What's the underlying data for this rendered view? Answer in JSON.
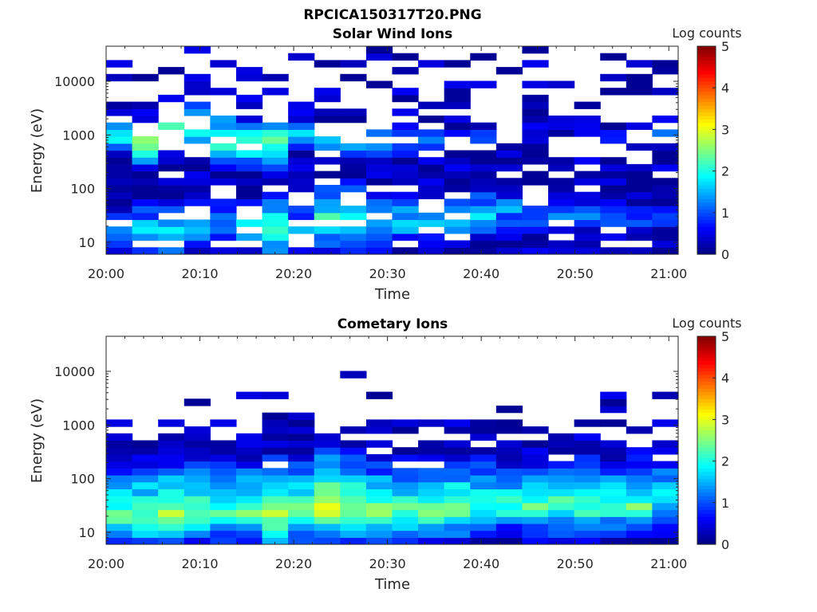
{
  "figure_title": "RPCICA150317T20.PNG",
  "chart_data": [
    {
      "type": "heatmap",
      "title": "Solar Wind Ions",
      "xlabel": "Time",
      "ylabel": "Energy (eV)",
      "x_ticks": [
        "20:00",
        "20:10",
        "20:20",
        "20:30",
        "20:40",
        "20:50",
        "21:00"
      ],
      "x_range": [
        "20:00",
        "21:01"
      ],
      "y_scale": "log",
      "y_range": [
        6,
        45000
      ],
      "y_ticks": [
        "10",
        "100",
        "1000",
        "10000"
      ],
      "colorbar": {
        "label": "Log counts",
        "range": [
          0,
          5
        ],
        "ticks": [
          "0",
          "1",
          "2",
          "3",
          "4",
          "5"
        ],
        "colormap": "jet"
      },
      "profile": [
        {
          "time": "20:00",
          "peak_energy_eV": 12,
          "peak_log_counts": 1.2,
          "extra_energy_eV": 1500,
          "extra_log_counts": 1.2
        },
        {
          "time": "20:02",
          "peak_energy_eV": 15,
          "peak_log_counts": 1.6,
          "extra_energy_eV": 700,
          "extra_log_counts": 2.3
        },
        {
          "time": "20:05",
          "peak_energy_eV": 15,
          "peak_log_counts": 1.9,
          "extra_energy_eV": 700,
          "extra_log_counts": 2.7
        },
        {
          "time": "20:08",
          "peak_energy_eV": 15,
          "peak_log_counts": 1.8,
          "extra_energy_eV": 1500,
          "extra_log_counts": 2.2
        },
        {
          "time": "20:11",
          "peak_energy_eV": 20,
          "peak_log_counts": 1.4,
          "extra_energy_eV": 1500,
          "extra_log_counts": 2.2
        },
        {
          "time": "20:13",
          "peak_energy_eV": 20,
          "peak_log_counts": 1.5,
          "extra_energy_eV": 700,
          "extra_log_counts": 2.6
        },
        {
          "time": "20:16",
          "peak_energy_eV": 20,
          "peak_log_counts": 1.7,
          "extra_energy_eV": 700,
          "extra_log_counts": 2.4
        },
        {
          "time": "20:19",
          "peak_energy_eV": 20,
          "peak_log_counts": 2.3,
          "extra_energy_eV": 800,
          "extra_log_counts": 2.7
        },
        {
          "time": "20:21",
          "peak_energy_eV": 20,
          "peak_log_counts": 1.4,
          "extra_energy_eV": 1000,
          "extra_log_counts": 1.5
        },
        {
          "time": "20:24",
          "peak_energy_eV": 30,
          "peak_log_counts": 2.2,
          "extra_energy_eV": 800,
          "extra_log_counts": 1.6
        },
        {
          "time": "20:27",
          "peak_energy_eV": 30,
          "peak_log_counts": 2.0,
          "extra_energy_eV": 800,
          "extra_log_counts": 2.0
        },
        {
          "time": "20:30",
          "peak_energy_eV": 25,
          "peak_log_counts": 1.8,
          "extra_energy_eV": 700,
          "extra_log_counts": 1.6
        },
        {
          "time": "20:33",
          "peak_energy_eV": 25,
          "peak_log_counts": 1.6,
          "extra_energy_eV": 800,
          "extra_log_counts": 1.6
        },
        {
          "time": "20:36",
          "peak_energy_eV": 30,
          "peak_log_counts": 1.7,
          "extra_energy_eV": 800,
          "extra_log_counts": 1.4
        },
        {
          "time": "20:39",
          "peak_energy_eV": 30,
          "peak_log_counts": 1.7,
          "extra_energy_eV": 800,
          "extra_log_counts": 1.2
        },
        {
          "time": "20:42",
          "peak_energy_eV": 40,
          "peak_log_counts": 1.5,
          "extra_energy_eV": 900,
          "extra_log_counts": 1.0
        },
        {
          "time": "20:45",
          "peak_energy_eV": 40,
          "peak_log_counts": 1.2,
          "extra_energy_eV": 900,
          "extra_log_counts": 0.9
        },
        {
          "time": "20:48",
          "peak_energy_eV": 30,
          "peak_log_counts": 1.3,
          "extra_energy_eV": 900,
          "extra_log_counts": 0.8
        },
        {
          "time": "20:51",
          "peak_energy_eV": 30,
          "peak_log_counts": 1.1,
          "extra_energy_eV": 900,
          "extra_log_counts": 0.8
        },
        {
          "time": "20:54",
          "peak_energy_eV": 30,
          "peak_log_counts": 1.1,
          "extra_energy_eV": 1000,
          "extra_log_counts": 0.8
        },
        {
          "time": "20:57",
          "peak_energy_eV": 25,
          "peak_log_counts": 1.1,
          "extra_energy_eV": 1000,
          "extra_log_counts": 0.8
        },
        {
          "time": "21:00",
          "peak_energy_eV": 30,
          "peak_log_counts": 1.0,
          "extra_energy_eV": 1300,
          "extra_log_counts": 1.7
        }
      ]
    },
    {
      "type": "heatmap",
      "title": "Cometary Ions",
      "xlabel": "Time",
      "ylabel": "Energy (eV)",
      "x_ticks": [
        "20:00",
        "20:10",
        "20:20",
        "20:30",
        "20:40",
        "20:50",
        "21:00"
      ],
      "x_range": [
        "20:00",
        "21:01"
      ],
      "y_scale": "log",
      "y_range": [
        6,
        45000
      ],
      "y_ticks": [
        "10",
        "100",
        "1000",
        "10000"
      ],
      "colorbar": {
        "label": "Log counts",
        "range": [
          0,
          5
        ],
        "ticks": [
          "0",
          "1",
          "2",
          "3",
          "4",
          "5"
        ],
        "colormap": "jet"
      },
      "profile": [
        {
          "time": "20:00",
          "peak_energy_eV": 25,
          "peak_log_counts": 2.2
        },
        {
          "time": "20:02",
          "peak_energy_eV": 20,
          "peak_log_counts": 2.4
        },
        {
          "time": "20:05",
          "peak_energy_eV": 20,
          "peak_log_counts": 2.6
        },
        {
          "time": "20:08",
          "peak_energy_eV": 25,
          "peak_log_counts": 2.6
        },
        {
          "time": "20:11",
          "peak_energy_eV": 25,
          "peak_log_counts": 2.3
        },
        {
          "time": "20:13",
          "peak_energy_eV": 25,
          "peak_log_counts": 2.4
        },
        {
          "time": "20:16",
          "peak_energy_eV": 25,
          "peak_log_counts": 2.4
        },
        {
          "time": "20:19",
          "peak_energy_eV": 20,
          "peak_log_counts": 2.9
        },
        {
          "time": "20:21",
          "peak_energy_eV": 25,
          "peak_log_counts": 2.5
        },
        {
          "time": "20:24",
          "peak_energy_eV": 30,
          "peak_log_counts": 3.0
        },
        {
          "time": "20:27",
          "peak_energy_eV": 25,
          "peak_log_counts": 2.6
        },
        {
          "time": "20:30",
          "peak_energy_eV": 25,
          "peak_log_counts": 2.4
        },
        {
          "time": "20:33",
          "peak_energy_eV": 25,
          "peak_log_counts": 2.4
        },
        {
          "time": "20:36",
          "peak_energy_eV": 25,
          "peak_log_counts": 2.6
        },
        {
          "time": "20:39",
          "peak_energy_eV": 30,
          "peak_log_counts": 2.3
        },
        {
          "time": "20:42",
          "peak_energy_eV": 30,
          "peak_log_counts": 2.1
        },
        {
          "time": "20:45",
          "peak_energy_eV": 30,
          "peak_log_counts": 2.2
        },
        {
          "time": "20:48",
          "peak_energy_eV": 30,
          "peak_log_counts": 2.3
        },
        {
          "time": "20:51",
          "peak_energy_eV": 30,
          "peak_log_counts": 2.3
        },
        {
          "time": "20:54",
          "peak_energy_eV": 30,
          "peak_log_counts": 2.2
        },
        {
          "time": "20:57",
          "peak_energy_eV": 30,
          "peak_log_counts": 2.3
        },
        {
          "time": "21:00",
          "peak_energy_eV": 40,
          "peak_log_counts": 2.0
        }
      ]
    }
  ]
}
